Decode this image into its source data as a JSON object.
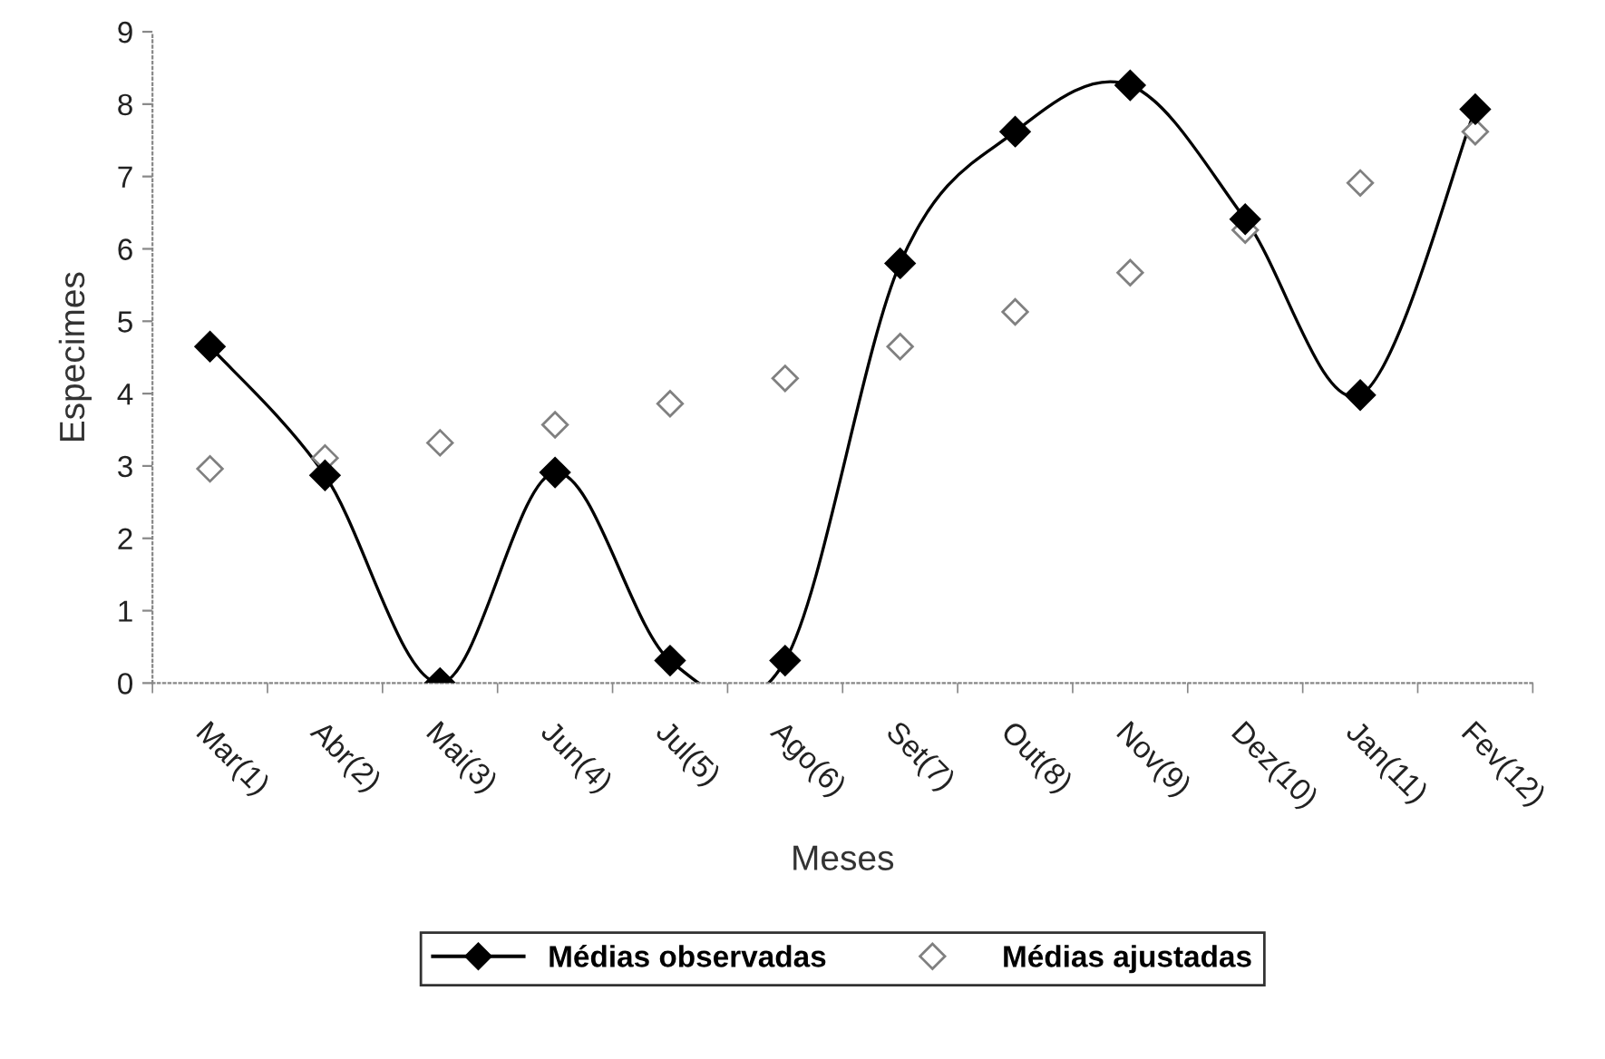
{
  "chart_data": {
    "type": "line",
    "xlabel": "Meses",
    "ylabel": "Especimes",
    "categories": [
      "Mar(1)",
      "Abr(2)",
      "Mai(3)",
      "Jun(4)",
      "Jul(5)",
      "Ago(6)",
      "Set(7)",
      "Out(8)",
      "Nov(9)",
      "Dez(10)",
      "Jan(11)",
      "Fev(12)"
    ],
    "series": [
      {
        "name": "Médias observadas",
        "color": "#000000",
        "marker": "diamond",
        "line_style": "solid",
        "values": [
          4.65,
          2.87,
          0,
          2.91,
          0.31,
          0.31,
          5.8,
          7.62,
          8.26,
          6.41,
          3.98,
          7.93
        ]
      },
      {
        "name": "Médias ajustadas",
        "type": "scatter",
        "color": "#808080",
        "marker": "diamond",
        "values": [
          2.96,
          3.11,
          3.32,
          3.57,
          3.86,
          4.21,
          4.65,
          5.13,
          5.67,
          6.26,
          6.91,
          7.62
        ]
      }
    ],
    "ylim": [
      0,
      9
    ],
    "yticks": [
      0,
      1,
      2,
      3,
      4,
      5,
      6,
      7,
      8,
      9
    ],
    "grid": false,
    "legend": "bottom"
  }
}
